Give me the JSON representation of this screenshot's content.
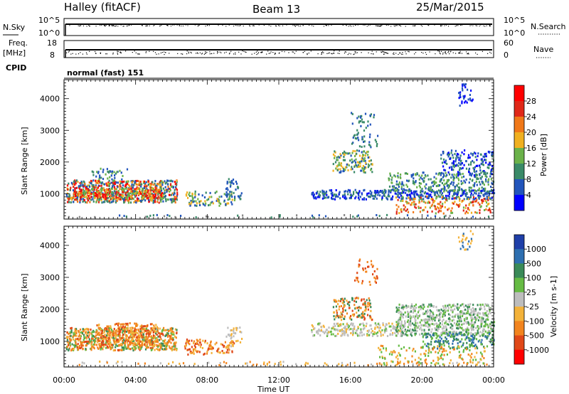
{
  "header": {
    "station": "Halley (fitACF)",
    "beam": "Beam 13",
    "date": "25/Mar/2015"
  },
  "summary": {
    "nsky_label": "N.Sky",
    "nsky_ticks": [
      "10^5",
      "10^0"
    ],
    "nsearch_label": "N.Search",
    "nsearch_ticks": [
      "10^5",
      "10^0"
    ],
    "freq_label_1": "Freq.",
    "freq_label_2": "[MHz]",
    "freq_ticks": [
      "18",
      "8"
    ],
    "nave_label": "Nave",
    "nave_ticks": [
      "60",
      "0"
    ],
    "cpid_label": "CPID",
    "cpid_text": "normal (fast) 151"
  },
  "chart_data": [
    {
      "type": "heatmap",
      "name": "power",
      "ylabel": "Slant Range [km]",
      "y_ticks": [
        1000,
        2000,
        3000,
        4000
      ],
      "ylim": [
        200,
        4600
      ],
      "colorbar_label": "Power [dB]",
      "colorbar_ticks": [
        "4",
        "8",
        "12",
        "16",
        "20",
        "24",
        "28"
      ],
      "colors": [
        "#0000ff",
        "#2255bb",
        "#3a8a68",
        "#6bb24a",
        "#f0b020",
        "#f07818",
        "#e02818",
        "#ff0000"
      ]
    },
    {
      "type": "heatmap",
      "name": "velocity",
      "ylabel": "Slant Range [km]",
      "y_ticks": [
        1000,
        2000,
        3000,
        4000
      ],
      "ylim": [
        200,
        4600
      ],
      "colorbar_label": "Velocity [m s-1]",
      "colorbar_ticks": [
        "1000",
        "500",
        "100",
        "25",
        "-25",
        "-100",
        "-500",
        "-1000"
      ],
      "colors": [
        "#1f3fa8",
        "#2e6fb0",
        "#3a8a58",
        "#66bb44",
        "#bdbdbd",
        "#f3b23a",
        "#f2841e",
        "#e04818",
        "#ff0000"
      ]
    }
  ],
  "xaxis": {
    "title": "Time UT",
    "ticks": [
      "00:00",
      "04:00",
      "08:00",
      "12:00",
      "16:00",
      "20:00",
      "00:00"
    ]
  }
}
